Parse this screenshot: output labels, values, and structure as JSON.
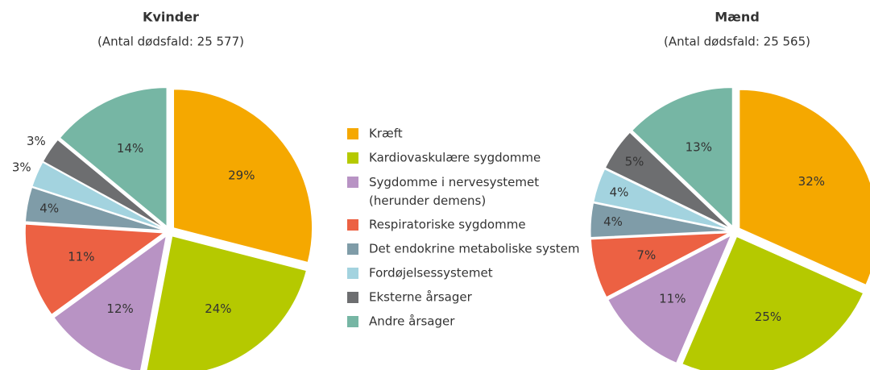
{
  "chart_data": [
    {
      "type": "pie",
      "title": "Kvinder",
      "subtitle": "(Antal dødsfald: 25 577)",
      "categories": [
        "Kræft",
        "Kardiovaskulære sygdomme",
        "Sygdomme i nervesystemet (herunder demens)",
        "Respiratoriske sygdomme",
        "Det endokrine metaboliske system",
        "Fordøjelsessystemet",
        "Eksterne årsager",
        "Andre årsager"
      ],
      "values": [
        29,
        24,
        12,
        11,
        4,
        3,
        3,
        14
      ],
      "colors": [
        "#f5a800",
        "#b5c900",
        "#b893c4",
        "#ec6143",
        "#7f9ca8",
        "#a3d3df",
        "#6d6e70",
        "#76b6a4"
      ]
    },
    {
      "type": "pie",
      "title": "Mænd",
      "subtitle": "(Antal dødsfald: 25 565)",
      "categories": [
        "Kræft",
        "Kardiovaskulære sygdomme",
        "Sygdomme i nervesystemet (herunder demens)",
        "Respiratoriske sygdomme",
        "Det endokrine metaboliske system",
        "Fordøjelsessystemet",
        "Eksterne årsager",
        "Andre årsager"
      ],
      "values": [
        32,
        25,
        11,
        7,
        4,
        4,
        5,
        13
      ],
      "colors": [
        "#f5a800",
        "#b5c900",
        "#b893c4",
        "#ec6143",
        "#7f9ca8",
        "#a3d3df",
        "#6d6e70",
        "#76b6a4"
      ]
    }
  ]
}
